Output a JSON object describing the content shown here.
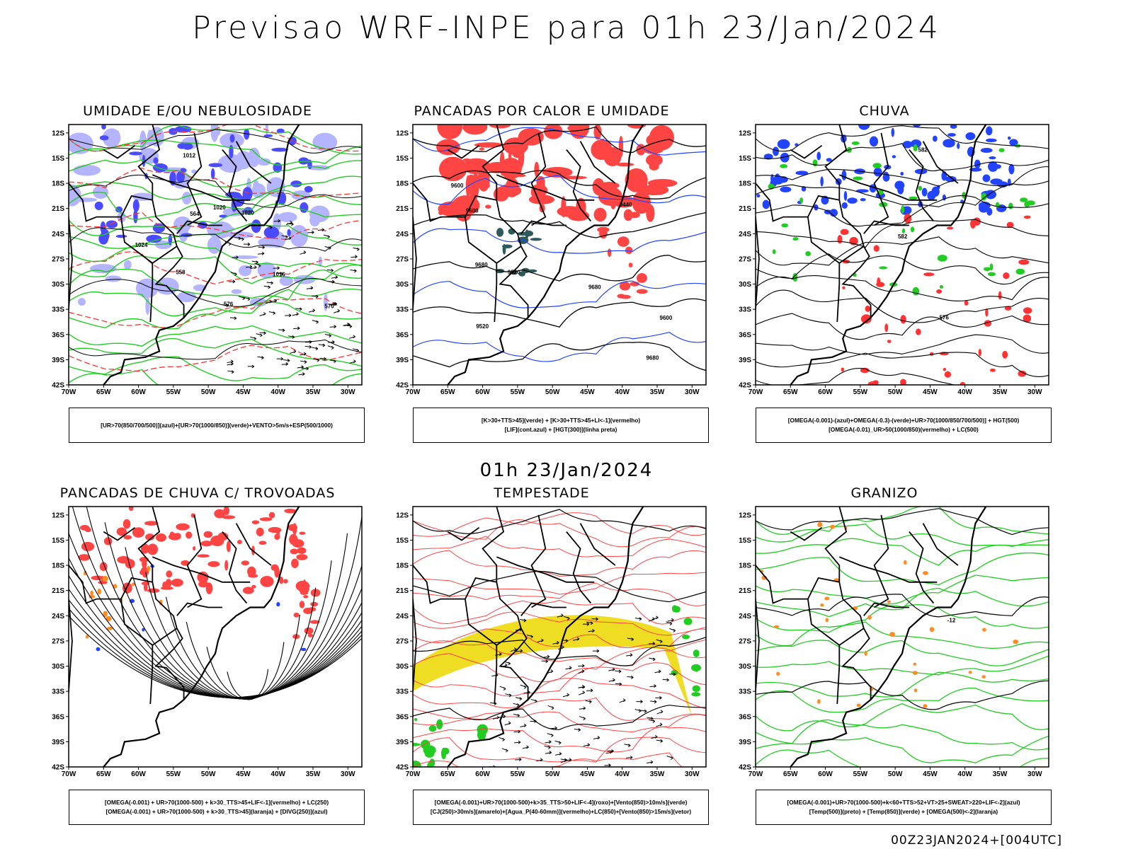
{
  "title": "Previsao WRF-INPE  para 01h 23/Jan/2024",
  "subtitle": "01h 23/Jan/2024",
  "footer": "00Z23JAN2024+[004UTC]",
  "axes": {
    "lat_labels": [
      "12S",
      "15S",
      "18S",
      "21S",
      "24S",
      "27S",
      "30S",
      "33S",
      "36S",
      "39S",
      "42S"
    ],
    "lon_labels": [
      "70W",
      "65W",
      "60W",
      "55W",
      "50W",
      "45W",
      "40W",
      "35W",
      "30W"
    ]
  },
  "panels": [
    {
      "id": "umidade",
      "title": "UMIDADE E/OU NEBULOSIDADE",
      "legend": [
        "[UR>70(850/700/500)](azul)+[UR>70(1000/850)](verde)+VENTO>5m/s+ESP(500/1000)"
      ],
      "contour_labels": [
        "1012",
        "1016",
        "1020",
        "1020",
        "1024",
        "576",
        "570",
        "564",
        "558"
      ],
      "colors": {
        "fill1": "#b4b4ff",
        "fill2": "#4a4aff",
        "line1": "#22cc22",
        "line2": "#ff3333"
      }
    },
    {
      "id": "pancadas-calor",
      "title": "PANCADAS POR CALOR E UMIDADE",
      "legend": [
        "[K>30+TTS>45](verde) + [K>30+TTS>45+LI<-1](vermelho)",
        "[LIF](cont.azul) + [HGT(300)](linha preta)"
      ],
      "contour_labels": [
        "9680",
        "9680",
        "9680",
        "9600",
        "9600",
        "9600",
        "9520",
        "9520",
        "9440"
      ],
      "colors": {
        "fill1": "#ff4444",
        "fill2": "#2f5a5a",
        "line1": "#2244ff",
        "line2": "#000000"
      }
    },
    {
      "id": "chuva",
      "title": "CHUVA",
      "legend": [
        "[OMEGA(-0.001)-(azul)+OMEGA(-0.3)-(verde)+UR>70(1000/850/700/500)] + HGT(500)",
        "[OMEGA(-0.01)_UR>50(1000/850)(vermelho) + LC(500)"
      ],
      "contour_labels": [
        "582",
        "582",
        "576"
      ],
      "colors": {
        "fill1": "#2244ff",
        "fill2": "#22cc22",
        "fill3": "#ff3333",
        "line1": "#000000"
      }
    },
    {
      "id": "pancadas-trovoadas",
      "title": "PANCADAS DE CHUVA C/ TROVOADAS",
      "legend": [
        "[OMEGA(-0.001) + UR>70(1000-500) + k>30_TTS>45+LIF<-1](vermelho) + LC(250)",
        "[OMEGA(-0.001) + UR>70(1000-500) + k>30_TTS>45](laranja) + [DIVG(250)](azul)"
      ],
      "contour_labels": [],
      "colors": {
        "fill1": "#ff4444",
        "fill2": "#ff8c22",
        "fill3": "#2244ff",
        "line1": "#000000"
      }
    },
    {
      "id": "tempestade",
      "title": "TEMPESTADE",
      "legend": [
        "[OMEGA(-0.001)+UR>70(1000-500)+k>35_TTS>50+LIF<-4](roxo)+[Vento(850)>10m/s](verde)",
        "[CJ(250)>30m/s](amarelo)+[Agua_P(40-60mm)](vermelho)+LC(850)+[Vento(850)>15m/s](vetor)"
      ],
      "contour_labels": [],
      "colors": {
        "fill1": "#eedd22",
        "fill2": "#22cc22",
        "line1": "#ff4444",
        "line2": "#000000"
      }
    },
    {
      "id": "granizo",
      "title": "GRANIZO",
      "legend": [
        "[OMEGA(-0.001)+UR>70(1000-500)+k<60+TTS>52+VT>25+SWEAT>220+LIF<-2](azul)",
        "[Temp(500)](preto) + [Temp(850)](verde) + [OMEGA(500)<-2](laranja)"
      ],
      "contour_labels": [
        "-12"
      ],
      "colors": {
        "fill1": "#ff8c22",
        "line1": "#22cc22",
        "line2": "#000000"
      }
    }
  ]
}
